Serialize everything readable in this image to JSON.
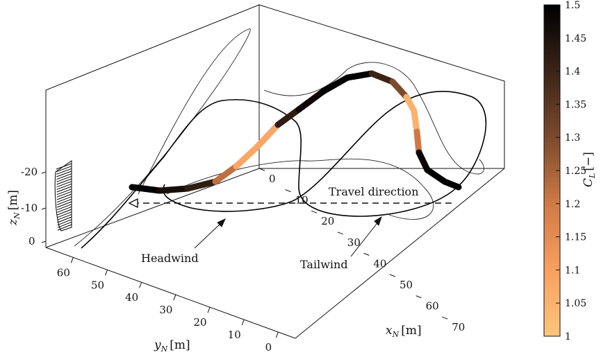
{
  "chart_data": {
    "type": "line",
    "projection": "3d",
    "axes": {
      "x": {
        "label": "x_N [m]",
        "label_base": "x",
        "label_sub": "N",
        "label_unit": "[m]",
        "ticks": [
          0,
          10,
          20,
          30,
          40,
          50,
          60,
          70
        ],
        "range": [
          -5,
          75
        ]
      },
      "y": {
        "label": "y_N [m]",
        "label_base": "y",
        "label_sub": "N",
        "label_unit": "[m]",
        "ticks": [
          60,
          50,
          40,
          30,
          20,
          10,
          0
        ],
        "range": [
          -5,
          68
        ]
      },
      "z": {
        "label": "z_N [m]",
        "label_base": "z",
        "label_sub": "N",
        "label_unit": "[m]",
        "ticks": [
          -20,
          -10,
          0
        ],
        "range": [
          -25,
          2
        ]
      }
    },
    "colorbar": {
      "label": "C_L [−]",
      "label_base": "C",
      "label_sub": "L",
      "label_unit": "[−]",
      "ticks": [
        "1.5",
        "1.45",
        "1.4",
        "1.35",
        "1.3",
        "1.25",
        "1.2",
        "1.15",
        "1.1",
        "1.05",
        "1"
      ],
      "range": [
        1,
        1.5
      ],
      "colors": [
        "#fdc57d",
        "#f8a060",
        "#cf7a45",
        "#7c4a2d",
        "#3b2417",
        "#000000"
      ]
    },
    "annotations": {
      "travel": "Travel direction",
      "headwind": "Headwind",
      "tailwind": "Tailwind"
    },
    "series": [
      {
        "role": "trajectory",
        "points": [
          [
            62,
            15,
            0
          ],
          [
            55,
            28,
            -4
          ],
          [
            46,
            40,
            -10
          ],
          [
            38,
            50,
            -16
          ],
          [
            30,
            58,
            -20
          ],
          [
            22,
            62,
            -22
          ],
          [
            14,
            60,
            -21
          ],
          [
            7,
            52,
            -16
          ],
          [
            4,
            44,
            -11
          ],
          [
            8,
            36,
            -7
          ],
          [
            18,
            30,
            -6
          ],
          [
            30,
            28,
            -10
          ],
          [
            40,
            25,
            -16
          ],
          [
            46,
            20,
            -21
          ],
          [
            48,
            14,
            -23
          ],
          [
            44,
            8,
            -23
          ],
          [
            36,
            4,
            -21
          ],
          [
            26,
            3,
            -17
          ],
          [
            16,
            6,
            -12
          ],
          [
            8,
            12,
            -8
          ],
          [
            4,
            20,
            -5
          ],
          [
            6,
            30,
            -6
          ],
          [
            14,
            38,
            -9
          ],
          [
            26,
            42,
            -12
          ],
          [
            40,
            42,
            -14
          ],
          [
            52,
            38,
            -16
          ],
          [
            60,
            30,
            -15
          ],
          [
            62,
            20,
            -12
          ],
          [
            58,
            12,
            -9
          ],
          [
            50,
            6,
            -7
          ]
        ]
      },
      {
        "role": "periodic orbit",
        "points": [
          [
            7,
            52,
            -16
          ],
          [
            13,
            48,
            -18
          ],
          [
            19,
            44,
            -19
          ],
          [
            24,
            40,
            -19
          ],
          [
            28,
            36,
            -18
          ],
          [
            31,
            31,
            -16
          ],
          [
            33,
            25,
            -14
          ],
          [
            34,
            19,
            -16
          ],
          [
            33,
            13,
            -19
          ],
          [
            31,
            8,
            -21
          ],
          [
            27,
            4,
            -20
          ],
          [
            22,
            2,
            -17
          ],
          [
            16,
            2,
            -13
          ],
          [
            11,
            4,
            -11
          ],
          [
            8,
            7,
            -10
          ],
          [
            7,
            11,
            -10
          ],
          [
            9,
            16,
            -10
          ],
          [
            13,
            20,
            -11
          ],
          [
            16,
            24,
            -13
          ],
          [
            17,
            29,
            -14
          ],
          [
            15,
            34,
            -14
          ],
          [
            12,
            40,
            -12
          ],
          [
            9,
            46,
            -11
          ],
          [
            6,
            51,
            -11
          ],
          [
            4,
            55,
            -12
          ],
          [
            4,
            57,
            -13
          ],
          [
            5,
            56,
            -14
          ],
          [
            7,
            52,
            -16
          ]
        ],
        "CL": [
          1.5,
          1.5,
          1.46,
          1.42,
          1.35,
          1.22,
          1.08,
          1.04,
          1.08,
          1.25,
          1.42,
          1.48,
          1.5,
          1.5,
          1.5,
          1.48,
          1.4,
          1.3,
          1.15,
          1.05,
          1.02,
          1.05,
          1.2,
          1.4,
          1.48,
          1.5,
          1.5,
          1.5
        ]
      },
      {
        "role": "ground track",
        "points": [
          [
            7,
            52,
            0
          ],
          [
            19,
            44,
            0
          ],
          [
            28,
            36,
            0
          ],
          [
            33,
            25,
            0
          ],
          [
            33,
            13,
            0
          ],
          [
            27,
            4,
            0
          ],
          [
            16,
            2,
            0
          ],
          [
            8,
            7,
            0
          ],
          [
            9,
            16,
            0
          ],
          [
            16,
            24,
            0
          ],
          [
            15,
            34,
            0
          ],
          [
            9,
            46,
            0
          ],
          [
            4,
            55,
            0
          ],
          [
            7,
            52,
            0
          ]
        ]
      },
      {
        "role": "side projection",
        "points": [
          [
            -5,
            52,
            -16
          ],
          [
            -5,
            44,
            -19
          ],
          [
            -5,
            36,
            -18
          ],
          [
            -5,
            25,
            -14
          ],
          [
            -5,
            13,
            -19
          ],
          [
            -5,
            4,
            -20
          ],
          [
            -5,
            2,
            -13
          ],
          [
            -5,
            7,
            -10
          ],
          [
            -5,
            16,
            -10
          ],
          [
            -5,
            24,
            -13
          ],
          [
            -5,
            34,
            -14
          ],
          [
            -5,
            46,
            -11
          ],
          [
            -5,
            55,
            -12
          ],
          [
            -5,
            52,
            -16
          ]
        ]
      },
      {
        "role": "back projection",
        "points": [
          [
            7,
            68,
            -16
          ],
          [
            19,
            68,
            -19
          ],
          [
            28,
            68,
            -18
          ],
          [
            33,
            68,
            -14
          ],
          [
            33,
            68,
            -19
          ],
          [
            27,
            68,
            -20
          ],
          [
            16,
            68,
            -13
          ],
          [
            8,
            68,
            -10
          ],
          [
            9,
            68,
            -10
          ],
          [
            16,
            68,
            -13
          ],
          [
            15,
            68,
            -14
          ],
          [
            9,
            68,
            -11
          ],
          [
            4,
            68,
            -12
          ],
          [
            7,
            68,
            -16
          ]
        ]
      }
    ],
    "travel_arrow": {
      "from": [
        -2,
        58,
        -9
      ],
      "to": [
        -2,
        3,
        -9
      ]
    },
    "headwind_arrow": {
      "from": [
        32,
        40,
        6
      ],
      "to": [
        14,
        34,
        0
      ]
    },
    "tailwind_arrow": {
      "from": [
        60,
        12,
        6
      ],
      "to": [
        33,
        14,
        0
      ]
    },
    "wind_profile": {
      "y": 67,
      "x": 60,
      "z_range": [
        -2,
        -21
      ],
      "lines": 25
    },
    "grid": false
  }
}
